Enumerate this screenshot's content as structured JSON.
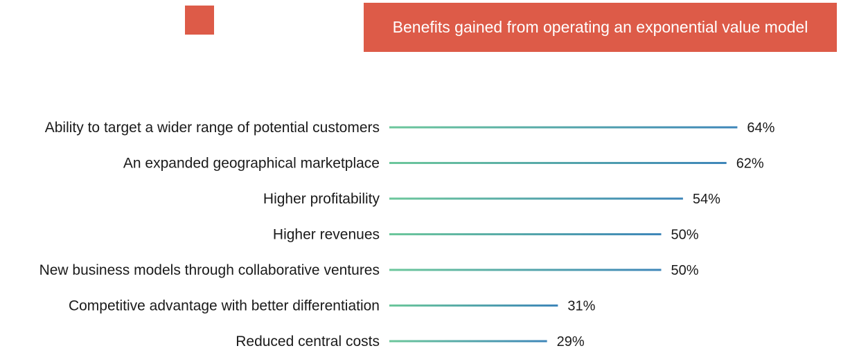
{
  "colors": {
    "accent": "#DD5B48",
    "bar_start": "#6CC79B",
    "bar_end": "#3E86B9"
  },
  "chart_data": {
    "type": "bar",
    "orientation": "horizontal",
    "title": "Benefits gained from operating an exponential value model",
    "categories": [
      "Ability to target a wider range of potential customers",
      "An expanded geographical marketplace",
      "Higher profitability",
      "Higher revenues",
      "New business models through collaborative ventures",
      "Competitive advantage with better differentiation",
      "Reduced central costs"
    ],
    "values": [
      64,
      62,
      54,
      50,
      50,
      31,
      29
    ],
    "value_labels": [
      "64%",
      "62%",
      "54%",
      "50%",
      "50%",
      "31%",
      "29%"
    ],
    "xlim": [
      0,
      100
    ],
    "grid": false,
    "legend": "none"
  }
}
